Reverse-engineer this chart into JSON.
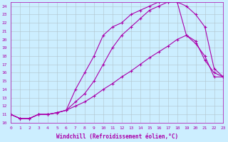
{
  "xlabel": "Windchill (Refroidissement éolien,°C)",
  "background_color": "#cceeff",
  "grid_color": "#b0c4cc",
  "line_color": "#aa00aa",
  "xlim": [
    0,
    23
  ],
  "ylim": [
    10,
    24.5
  ],
  "xticks": [
    0,
    1,
    2,
    3,
    4,
    5,
    6,
    7,
    8,
    9,
    10,
    11,
    12,
    13,
    14,
    15,
    16,
    17,
    18,
    19,
    20,
    21,
    22,
    23
  ],
  "yticks": [
    10,
    11,
    12,
    13,
    14,
    15,
    16,
    17,
    18,
    19,
    20,
    21,
    22,
    23,
    24
  ],
  "curve1_x": [
    0,
    1,
    2,
    3,
    4,
    5,
    6,
    7,
    8,
    9,
    10,
    11,
    12,
    13,
    14,
    15,
    16,
    17,
    18,
    19,
    20,
    21,
    22,
    23
  ],
  "curve1_y": [
    11.0,
    10.5,
    10.5,
    11.0,
    11.0,
    11.2,
    11.5,
    14.0,
    16.0,
    18.0,
    20.5,
    21.5,
    22.0,
    23.0,
    23.5,
    24.0,
    24.5,
    24.5,
    24.5,
    20.5,
    19.5,
    18.0,
    15.5,
    15.5
  ],
  "curve2_x": [
    0,
    1,
    2,
    3,
    4,
    5,
    6,
    7,
    8,
    9,
    10,
    11,
    12,
    13,
    14,
    15,
    16,
    17,
    18,
    19,
    20,
    21,
    22,
    23
  ],
  "curve2_y": [
    11.0,
    10.5,
    10.5,
    11.0,
    11.0,
    11.2,
    11.5,
    12.5,
    13.5,
    15.0,
    17.0,
    19.0,
    20.5,
    21.5,
    22.5,
    23.5,
    24.0,
    24.5,
    24.5,
    24.0,
    23.0,
    21.5,
    16.5,
    15.5
  ],
  "curve3_x": [
    0,
    1,
    2,
    3,
    4,
    5,
    6,
    7,
    8,
    9,
    10,
    11,
    12,
    13,
    14,
    15,
    16,
    17,
    18,
    19,
    20,
    21,
    22,
    23
  ],
  "curve3_y": [
    11.0,
    10.5,
    10.5,
    11.0,
    11.0,
    11.2,
    11.5,
    12.0,
    12.5,
    13.2,
    14.0,
    14.7,
    15.5,
    16.2,
    17.0,
    17.8,
    18.5,
    19.2,
    20.0,
    20.5,
    19.8,
    17.5,
    16.0,
    15.5
  ]
}
